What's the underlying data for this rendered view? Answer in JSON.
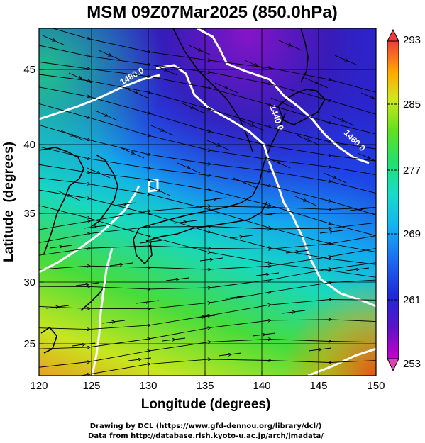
{
  "title": "MSM 09Z07Mar2025 (850.0hPa)",
  "x_axis": {
    "label": "Longitude (degrees)",
    "ticks": [
      "120",
      "125",
      "130",
      "135",
      "140",
      "145",
      "150"
    ],
    "range": [
      120,
      150
    ]
  },
  "y_axis": {
    "label": "Latitude  (degrees)",
    "ticks": [
      "25",
      "30",
      "35",
      "40",
      "45"
    ],
    "range": [
      22.4,
      47.6
    ]
  },
  "colorbar": {
    "ticks": [
      "293",
      "285",
      "277",
      "269",
      "261",
      "253"
    ],
    "range": [
      253,
      293
    ],
    "colors": [
      "#c800c8",
      "#3a1ab4",
      "#1e3cf0",
      "#14a0f0",
      "#18d6d6",
      "#22e070",
      "#6ee01e",
      "#dce61e",
      "#ff9a00",
      "#f04040"
    ]
  },
  "contours": [
    {
      "value": "1400.0",
      "color": "#ffffff"
    },
    {
      "value": "1440.0",
      "color": "#ffffff"
    },
    {
      "value": "1460.0",
      "color": "#ffffff"
    },
    {
      "value": "1480.0",
      "color": "#ffffff"
    }
  ],
  "credits": {
    "line1": "Drawing by DCL (https://www.gfd-dennou.org/library/dcl/)",
    "line2": "Data from http://database.rish.kyoto-u.ac.jp/arch/jmadata/"
  }
}
